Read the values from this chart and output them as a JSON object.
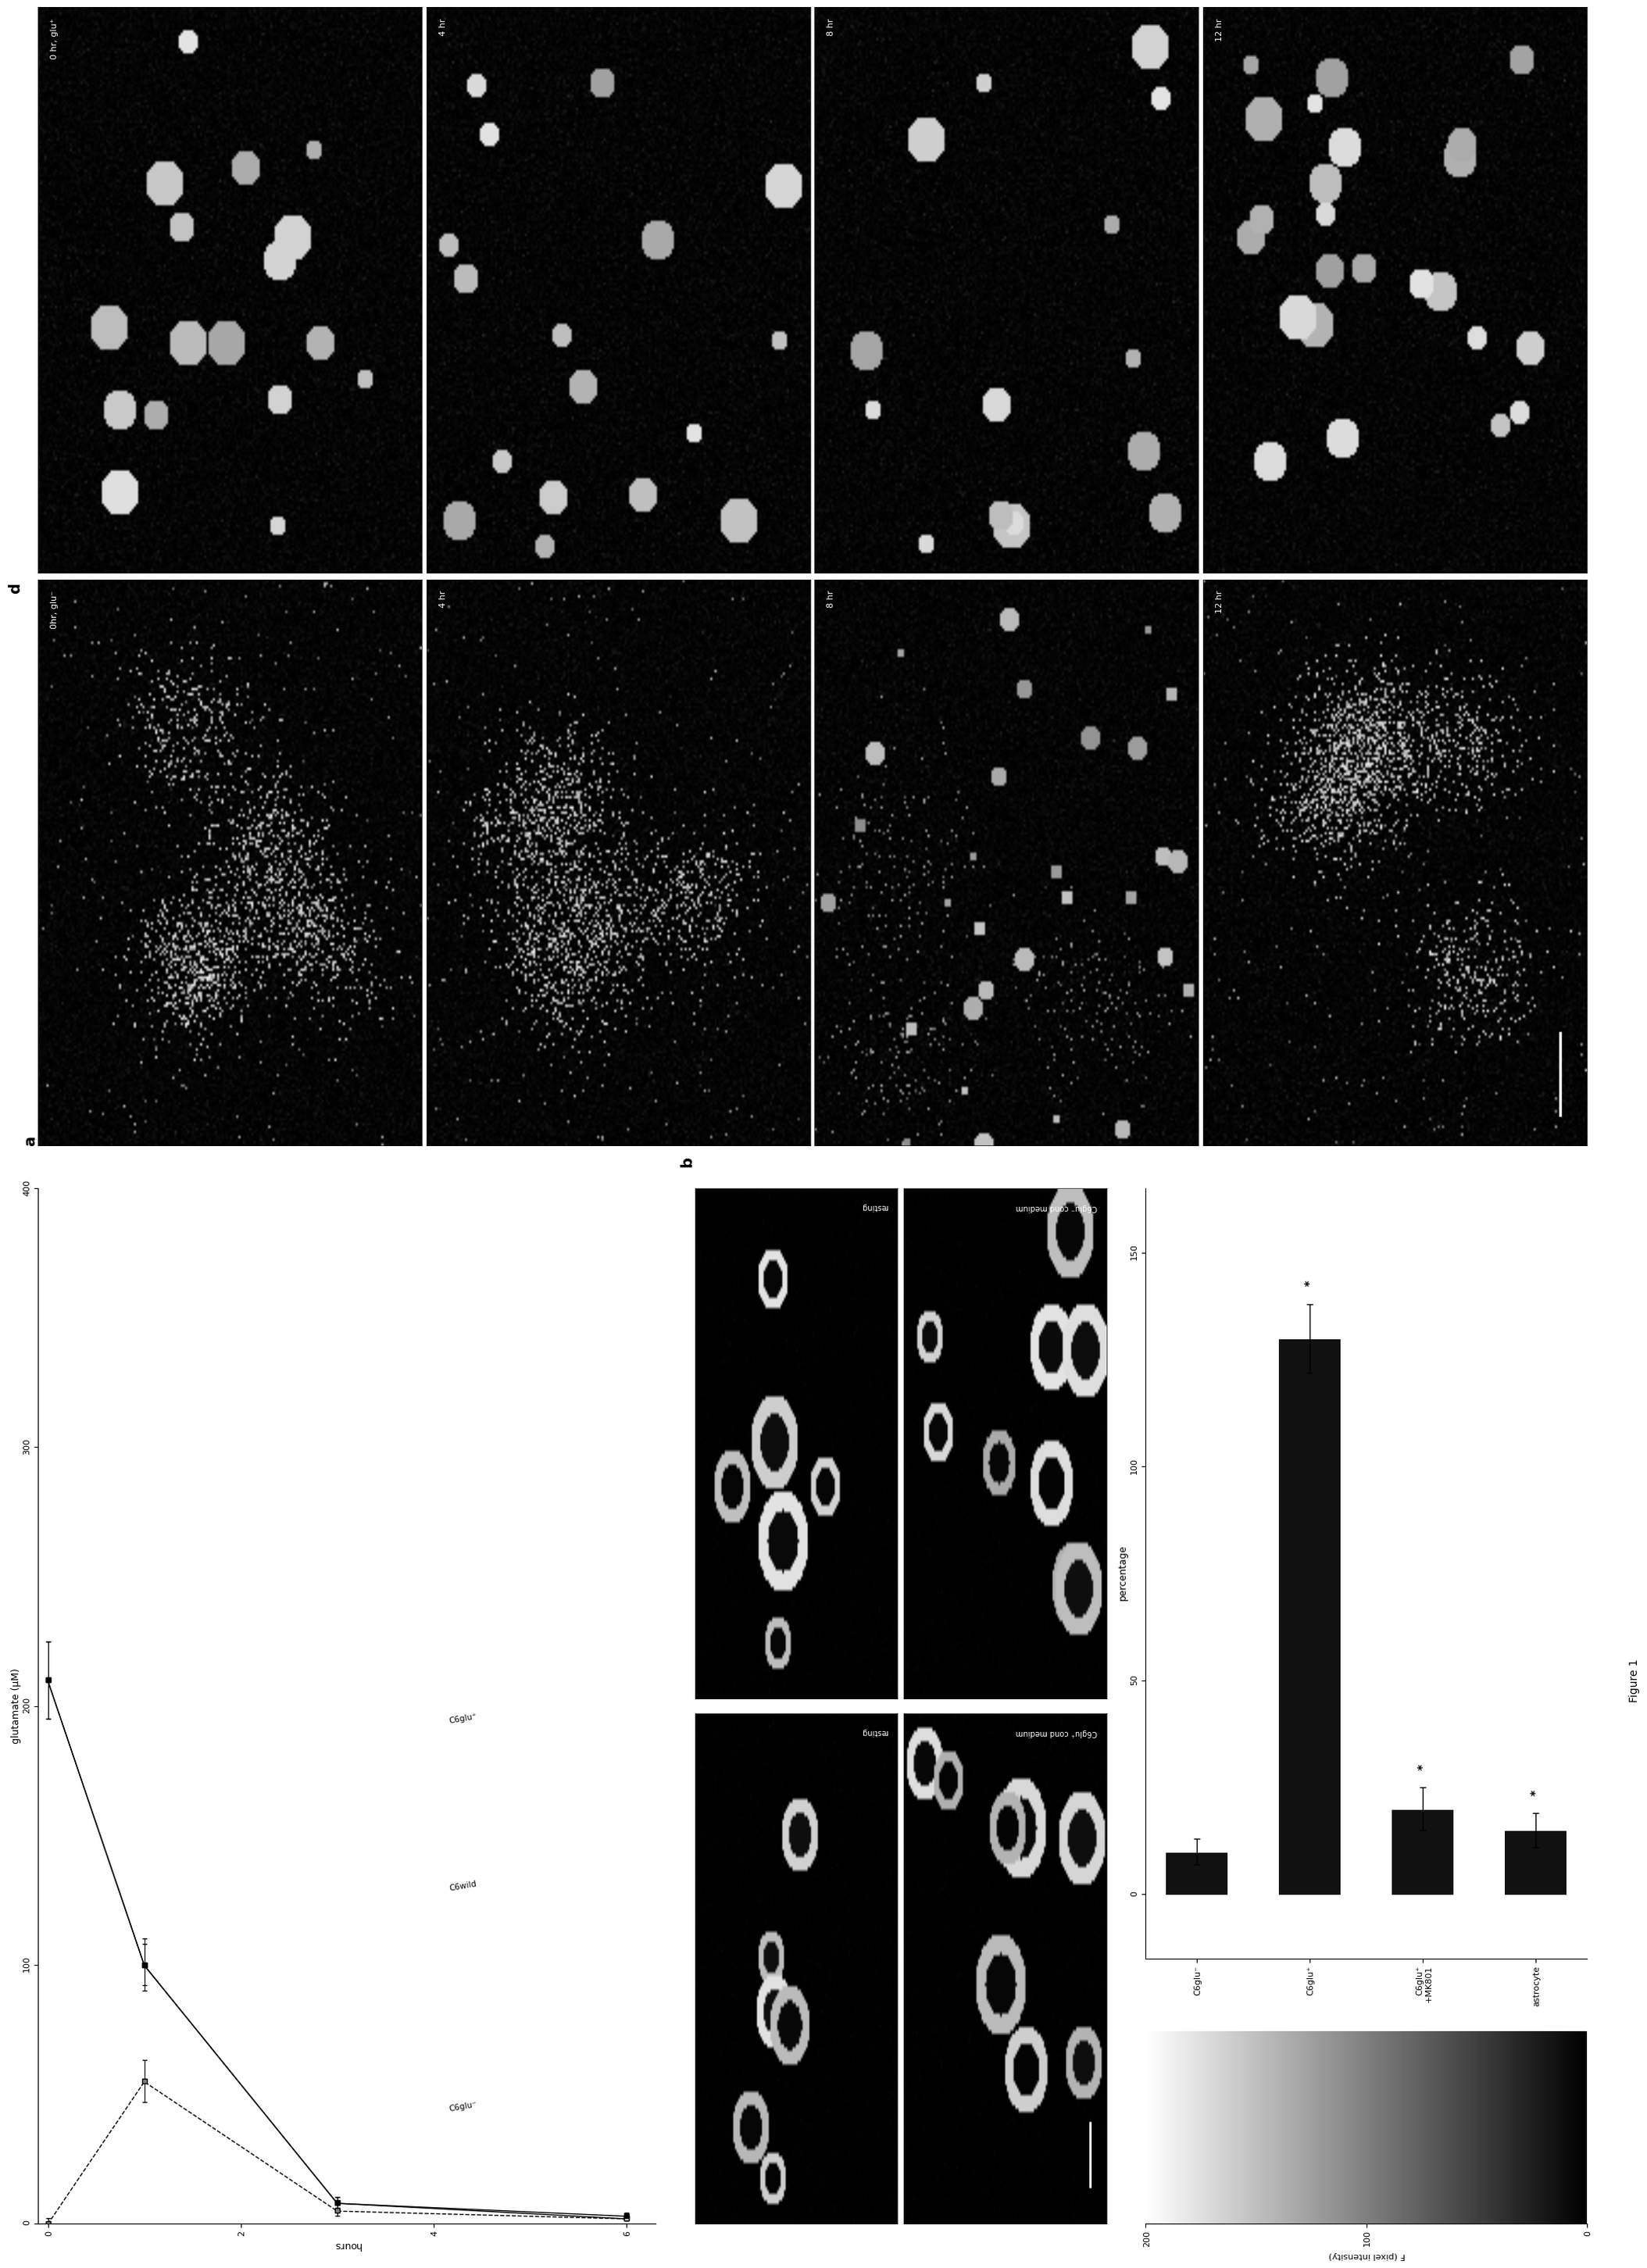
{
  "panel_a_series": [
    {
      "name": "C6glu⁻",
      "hours": [
        0,
        1,
        3,
        6
      ],
      "glutamate": [
        0,
        55,
        5,
        2
      ],
      "errors": [
        2,
        8,
        2,
        1
      ],
      "linestyle": "--",
      "filled": false
    },
    {
      "name": "C6wild",
      "hours": [
        0,
        1,
        3,
        6
      ],
      "glutamate": [
        210,
        100,
        8,
        2
      ],
      "errors": [
        15,
        10,
        2,
        1
      ],
      "linestyle": "-",
      "filled": false
    },
    {
      "name": "C6glu⁺",
      "hours": [
        0,
        1,
        3,
        6
      ],
      "glutamate": [
        210,
        100,
        8,
        3
      ],
      "errors": [
        15,
        8,
        2,
        1
      ],
      "linestyle": "-",
      "filled": true
    }
  ],
  "panel_a_glu_lim": [
    0,
    400
  ],
  "panel_a_hours_lim": [
    0,
    6
  ],
  "panel_a_glu_ticks": [
    0,
    100,
    200,
    300,
    400
  ],
  "panel_a_hours_ticks": [
    0,
    2,
    4,
    6
  ],
  "panel_a_glu_label": "glutamate (μM)",
  "panel_a_hours_label": "hours",
  "panel_c_categories": [
    "C6glu⁻",
    "C6glu⁺",
    "C6glu⁺\n+MK801",
    "astrocyte"
  ],
  "panel_c_values": [
    10,
    130,
    20,
    15
  ],
  "panel_c_errors": [
    3,
    8,
    5,
    4
  ],
  "panel_c_has_stars": [
    false,
    true,
    true,
    true
  ],
  "panel_c_xlabel": "percentage",
  "panel_c_xlim": [
    -15,
    165
  ],
  "panel_c_xticks": [
    0,
    50,
    100,
    150
  ],
  "panel_c_bar_color": "#111111",
  "colorbar_vmin": 0,
  "colorbar_vmax": 200,
  "colorbar_ticks": [
    0,
    100,
    200
  ],
  "colorbar_label": "F (pixel intensity)",
  "left_labels": [
    [
      "0hr, glu⁻",
      "0 hr, glu⁺"
    ],
    [
      "4 hr",
      "4 hr"
    ],
    [
      "8 hr",
      "8 hr"
    ],
    [
      "12 hr",
      "12 hr"
    ]
  ],
  "panel_b_top_labels": [
    "resting",
    "resting"
  ],
  "panel_b_bot_labels": [
    "C6glu⁺ cond medium",
    "C6glu⁻ cond medium"
  ],
  "figure_caption": "Figure 1",
  "bg_color": "#ffffff",
  "fg_color": "#000000"
}
